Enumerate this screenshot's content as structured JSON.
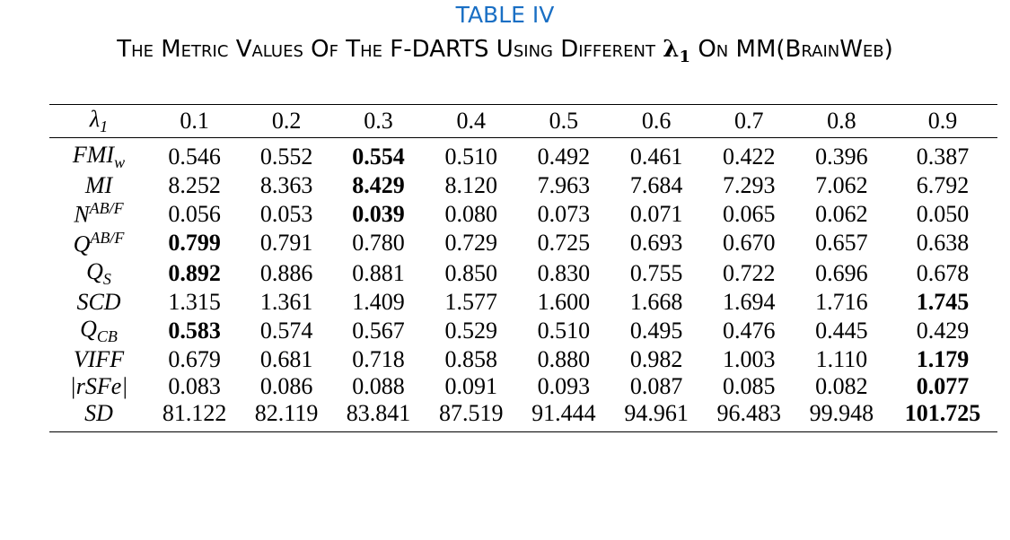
{
  "table_label": "TABLE IV",
  "title": {
    "before": "The Metric Values Of The F-DARTS Using Different",
    "symbol": {
      "base": "λ",
      "sub": "1"
    },
    "after": "On MM(BrainWeb)"
  },
  "table": {
    "header": {
      "first": {
        "base": "λ",
        "sub": "1"
      },
      "columns": [
        "0.1",
        "0.2",
        "0.3",
        "0.4",
        "0.5",
        "0.6",
        "0.7",
        "0.8",
        "0.9"
      ]
    },
    "rows": [
      {
        "metric": {
          "base": "FMI",
          "sub": "w"
        },
        "cells": [
          "0.546",
          "0.552",
          {
            "text": "0.554",
            "bold": true
          },
          "0.510",
          "0.492",
          "0.461",
          "0.422",
          "0.396",
          "0.387"
        ]
      },
      {
        "metric": {
          "base": "MI"
        },
        "cells": [
          "8.252",
          "8.363",
          {
            "text": "8.429",
            "bold": true
          },
          "8.120",
          "7.963",
          "7.684",
          "7.293",
          "7.062",
          "6.792"
        ]
      },
      {
        "metric": {
          "base": "N",
          "sup": "AB/F"
        },
        "cells": [
          "0.056",
          "0.053",
          {
            "text": "0.039",
            "bold": true
          },
          "0.080",
          "0.073",
          "0.071",
          "0.065",
          "0.062",
          "0.050"
        ]
      },
      {
        "metric": {
          "base": "Q",
          "sup": "AB/F"
        },
        "cells": [
          {
            "text": "0.799",
            "bold": true
          },
          "0.791",
          "0.780",
          "0.729",
          "0.725",
          "0.693",
          "0.670",
          "0.657",
          "0.638"
        ]
      },
      {
        "metric": {
          "base": "Q",
          "sub": "S"
        },
        "cells": [
          {
            "text": "0.892",
            "bold": true
          },
          "0.886",
          "0.881",
          "0.850",
          "0.830",
          "0.755",
          "0.722",
          "0.696",
          "0.678"
        ]
      },
      {
        "metric": {
          "base": "SCD"
        },
        "cells": [
          "1.315",
          "1.361",
          "1.409",
          "1.577",
          "1.600",
          "1.668",
          "1.694",
          "1.716",
          {
            "text": "1.745",
            "bold": true
          }
        ]
      },
      {
        "metric": {
          "base": "Q",
          "sub": "CB"
        },
        "cells": [
          {
            "text": "0.583",
            "bold": true
          },
          "0.574",
          "0.567",
          "0.529",
          "0.510",
          "0.495",
          "0.476",
          "0.445",
          "0.429"
        ]
      },
      {
        "metric": {
          "base": "VIFF"
        },
        "cells": [
          "0.679",
          "0.681",
          "0.718",
          "0.858",
          "0.880",
          "0.982",
          "1.003",
          "1.110",
          {
            "text": "1.179",
            "bold": true
          }
        ]
      },
      {
        "metric": {
          "base": "|rSFe|"
        },
        "cells": [
          "0.083",
          "0.086",
          "0.088",
          "0.091",
          "0.093",
          "0.087",
          "0.085",
          "0.082",
          {
            "text": "0.077",
            "bold": true
          }
        ]
      },
      {
        "metric": {
          "base": "SD"
        },
        "cells": [
          "81.122",
          "82.119",
          "83.841",
          "87.519",
          "91.444",
          "94.961",
          "96.483",
          "99.948",
          {
            "text": "101.725",
            "bold": true
          }
        ]
      }
    ]
  }
}
